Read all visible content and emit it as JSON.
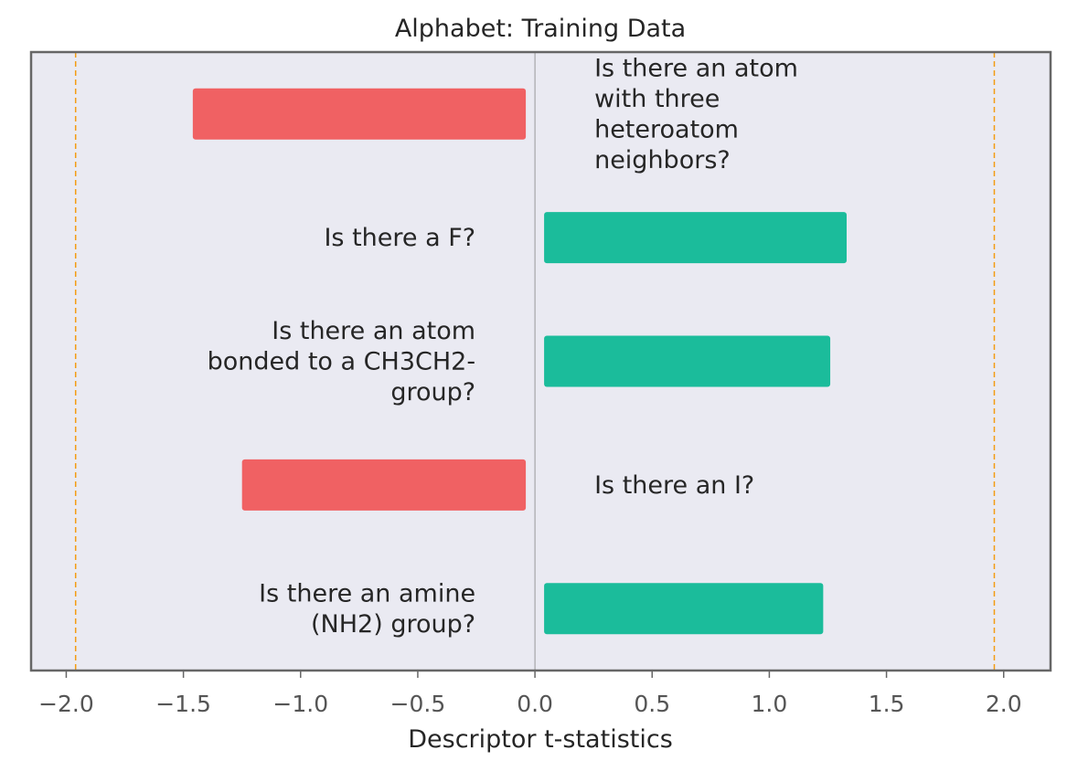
{
  "chart_data": {
    "type": "bar",
    "orientation": "horizontal",
    "title": "Alphabet: Training Data",
    "xlabel": "Descriptor t-statistics",
    "ylabel": "",
    "xlim": [
      -2.15,
      2.2
    ],
    "xticks": [
      -2.0,
      -1.5,
      -1.0,
      -0.5,
      0.0,
      0.5,
      1.0,
      1.5,
      2.0
    ],
    "xtick_labels": [
      "−2.0",
      "−1.5",
      "−1.0",
      "−0.5",
      "0.0",
      "0.5",
      "1.0",
      "1.5",
      "2.0"
    ],
    "significance_lines": [
      -1.96,
      1.96
    ],
    "grid": false,
    "bars": [
      {
        "label": "Is there an atom with three heteroatom neighbors?",
        "lines": [
          "Is there an atom",
          "with three",
          "heteroatom",
          "neighbors?"
        ],
        "value": -1.46
      },
      {
        "label": "Is there a F?",
        "lines": [
          "Is there a F?"
        ],
        "value": 1.33
      },
      {
        "label": "Is there an atom bonded to a CH3CH2- group?",
        "lines": [
          "Is there an atom",
          "bonded to a CH3CH2-",
          "group?"
        ],
        "value": 1.26
      },
      {
        "label": "Is there an I?",
        "lines": [
          "Is there an I?"
        ],
        "value": -1.25
      },
      {
        "label": "Is there an amine (NH2) group?",
        "lines": [
          "Is there an amine",
          "(NH2) group?"
        ],
        "value": 1.23
      }
    ],
    "colors": {
      "positive": "#1bbc9b",
      "negative": "#f06163",
      "background": "#eaeaf2",
      "frame": "#666666",
      "significance_line": "#f39c12",
      "zero_line": "#999999"
    }
  }
}
